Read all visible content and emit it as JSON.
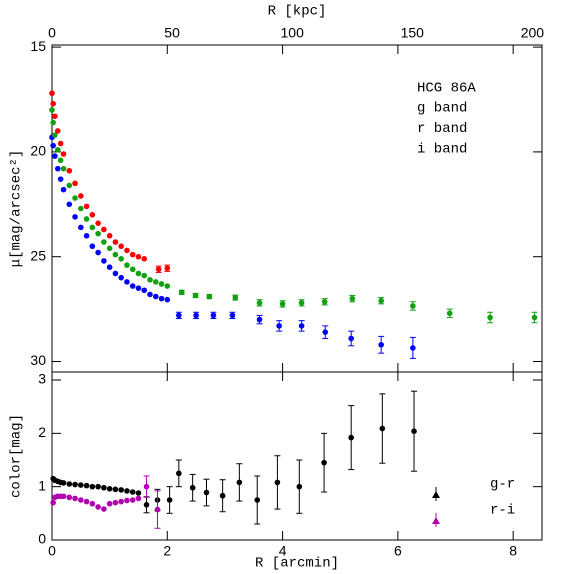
{
  "chart_data": [
    {
      "type": "scatter",
      "x2label": "R [kpc]",
      "x2lim": [
        0,
        204
      ],
      "x2ticks": [
        0,
        50,
        100,
        150,
        200
      ],
      "ylabel": "μ[mag/arcsec²]",
      "ylim": [
        14.9,
        30.5
      ],
      "y_inverted": true,
      "yticks": [
        15,
        20,
        25,
        30
      ],
      "legend_title": "HCG 86A",
      "series": [
        {
          "name": "g band",
          "color": "#0000ff",
          "x": [
            0.0,
            0.02,
            0.05,
            0.1,
            0.15,
            0.2,
            0.3,
            0.4,
            0.5,
            0.6,
            0.7,
            0.8,
            0.9,
            1.0,
            1.1,
            1.2,
            1.3,
            1.4,
            1.5,
            1.6,
            1.7,
            1.8,
            1.9,
            2.0,
            2.2,
            2.5,
            2.8,
            3.13,
            3.6,
            3.94,
            4.33,
            4.74,
            5.19,
            5.71,
            6.26
          ],
          "values": [
            19.3,
            19.7,
            20.2,
            20.8,
            21.3,
            21.8,
            22.5,
            23.1,
            23.6,
            24.0,
            24.5,
            24.8,
            25.2,
            25.5,
            25.8,
            26.0,
            26.2,
            26.4,
            26.5,
            26.6,
            26.8,
            26.9,
            27.0,
            27.05,
            27.8,
            27.8,
            27.8,
            27.8,
            28.0,
            28.3,
            28.3,
            28.6,
            28.9,
            29.2,
            29.35
          ],
          "errors": [
            null,
            null,
            null,
            null,
            null,
            null,
            null,
            null,
            null,
            null,
            null,
            null,
            null,
            null,
            null,
            null,
            null,
            null,
            null,
            null,
            null,
            null,
            null,
            null,
            0.15,
            0.15,
            0.15,
            0.15,
            0.2,
            0.25,
            0.25,
            0.3,
            0.35,
            0.4,
            0.5
          ]
        },
        {
          "name": "r band",
          "color": "#10a010",
          "x": [
            0.0,
            0.02,
            0.05,
            0.1,
            0.15,
            0.2,
            0.3,
            0.4,
            0.5,
            0.6,
            0.7,
            0.8,
            0.9,
            1.0,
            1.1,
            1.2,
            1.3,
            1.4,
            1.5,
            1.6,
            1.7,
            1.8,
            1.9,
            2.0,
            2.25,
            2.49,
            2.73,
            3.18,
            3.6,
            4.0,
            4.33,
            4.73,
            5.21,
            5.71,
            6.26,
            6.9,
            7.6,
            8.37
          ],
          "values": [
            18.0,
            18.6,
            19.2,
            19.9,
            20.4,
            20.8,
            21.6,
            22.2,
            22.7,
            23.2,
            23.6,
            23.9,
            24.3,
            24.6,
            24.9,
            25.1,
            25.4,
            25.6,
            25.8,
            25.9,
            26.1,
            26.2,
            26.3,
            26.4,
            26.7,
            26.85,
            26.9,
            26.95,
            27.2,
            27.25,
            27.2,
            27.15,
            27.0,
            27.1,
            27.35,
            27.7,
            27.9,
            27.9
          ],
          "errors": [
            null,
            null,
            null,
            null,
            null,
            null,
            null,
            null,
            null,
            null,
            null,
            null,
            null,
            null,
            null,
            null,
            null,
            null,
            null,
            null,
            null,
            null,
            null,
            null,
            0.1,
            0.1,
            0.1,
            0.12,
            0.15,
            0.15,
            0.15,
            0.15,
            0.15,
            0.15,
            0.2,
            0.2,
            0.25,
            0.25
          ]
        },
        {
          "name": "i band",
          "color": "#ff0000",
          "x": [
            0.0,
            0.02,
            0.05,
            0.1,
            0.15,
            0.2,
            0.3,
            0.4,
            0.5,
            0.6,
            0.7,
            0.8,
            0.9,
            1.0,
            1.1,
            1.2,
            1.3,
            1.4,
            1.5,
            1.6,
            1.85,
            2.0
          ],
          "values": [
            17.2,
            17.7,
            18.3,
            19.0,
            19.6,
            20.1,
            20.9,
            21.5,
            22.1,
            22.6,
            23.0,
            23.4,
            23.7,
            24.0,
            24.3,
            24.5,
            24.7,
            24.9,
            25.0,
            25.1,
            25.6,
            25.55
          ],
          "errors": [
            null,
            null,
            null,
            null,
            null,
            null,
            null,
            null,
            null,
            null,
            null,
            null,
            null,
            null,
            null,
            null,
            null,
            null,
            null,
            null,
            0.15,
            0.15
          ]
        }
      ]
    },
    {
      "type": "scatter",
      "xlabel": "R [arcmin]",
      "xlim": [
        0,
        8.5
      ],
      "xticks": [
        0,
        2,
        4,
        6,
        8
      ],
      "ylabel": "color[mag]",
      "ylim": [
        0,
        3.15
      ],
      "yticks": [
        0,
        1,
        2,
        3
      ],
      "series": [
        {
          "name": "g-r",
          "color": "#000000",
          "x": [
            0.02,
            0.05,
            0.1,
            0.15,
            0.2,
            0.3,
            0.4,
            0.5,
            0.6,
            0.7,
            0.8,
            0.9,
            1.0,
            1.1,
            1.2,
            1.3,
            1.4,
            1.5,
            1.64,
            1.83,
            2.04,
            2.2,
            2.44,
            2.68,
            2.96,
            3.25,
            3.56,
            3.91,
            4.29,
            4.72,
            5.19,
            5.73,
            6.28
          ],
          "values": [
            1.15,
            1.12,
            1.1,
            1.08,
            1.07,
            1.05,
            1.04,
            1.03,
            1.02,
            1.0,
            1.0,
            0.98,
            0.96,
            0.95,
            0.94,
            0.92,
            0.9,
            0.88,
            0.66,
            0.75,
            0.75,
            1.25,
            0.98,
            0.89,
            0.83,
            1.08,
            0.75,
            1.08,
            1.0,
            1.45,
            1.92,
            2.09,
            2.04
          ],
          "errors": [
            null,
            null,
            null,
            null,
            null,
            null,
            null,
            null,
            null,
            null,
            null,
            null,
            null,
            null,
            null,
            null,
            null,
            null,
            0.15,
            0.2,
            0.25,
            0.25,
            0.25,
            0.25,
            0.3,
            0.35,
            0.45,
            0.5,
            0.5,
            0.55,
            0.6,
            0.65,
            0.75
          ]
        },
        {
          "name": "r-i",
          "color": "#b000b0",
          "x": [
            0.02,
            0.05,
            0.1,
            0.15,
            0.2,
            0.3,
            0.4,
            0.5,
            0.6,
            0.7,
            0.8,
            0.9,
            1.0,
            1.1,
            1.2,
            1.3,
            1.4,
            1.5,
            1.64,
            1.83
          ],
          "values": [
            0.7,
            0.8,
            0.82,
            0.82,
            0.82,
            0.8,
            0.78,
            0.75,
            0.72,
            0.68,
            0.62,
            0.58,
            0.68,
            0.7,
            0.72,
            0.74,
            0.75,
            0.78,
            1.0,
            0.57
          ],
          "errors": [
            null,
            null,
            null,
            null,
            null,
            null,
            null,
            null,
            null,
            null,
            null,
            null,
            null,
            null,
            null,
            null,
            null,
            null,
            0.2,
            0.35
          ]
        }
      ]
    }
  ]
}
